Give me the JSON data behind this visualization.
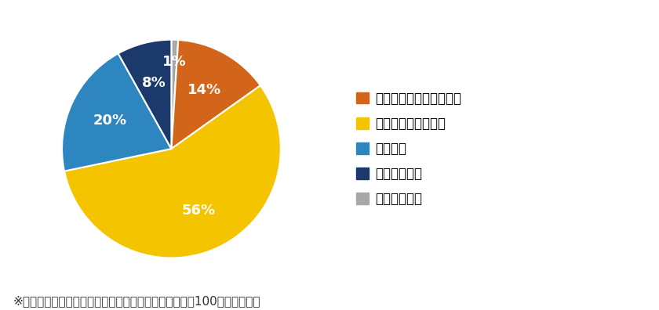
{
  "labels": [
    "内容を含めて知っている",
    "名称だけ知っている",
    "知らない",
    "全く知らない",
    "わかりづらい"
  ],
  "values": [
    14,
    56,
    20,
    8,
    1
  ],
  "colors": [
    "#D2651A",
    "#F5C400",
    "#2E86C1",
    "#1B3A6B",
    "#A8A8A8"
  ],
  "pct_labels": [
    "14%",
    "56%",
    "20%",
    "8%",
    "1%"
  ],
  "plot_order": [
    4,
    0,
    1,
    2,
    3
  ],
  "footnote": "※小数点以下を四捨五入しているため、必ずしも合計が100にならない。",
  "background_color": "#ffffff",
  "label_fontsize": 13,
  "legend_fontsize": 12,
  "footnote_fontsize": 11
}
